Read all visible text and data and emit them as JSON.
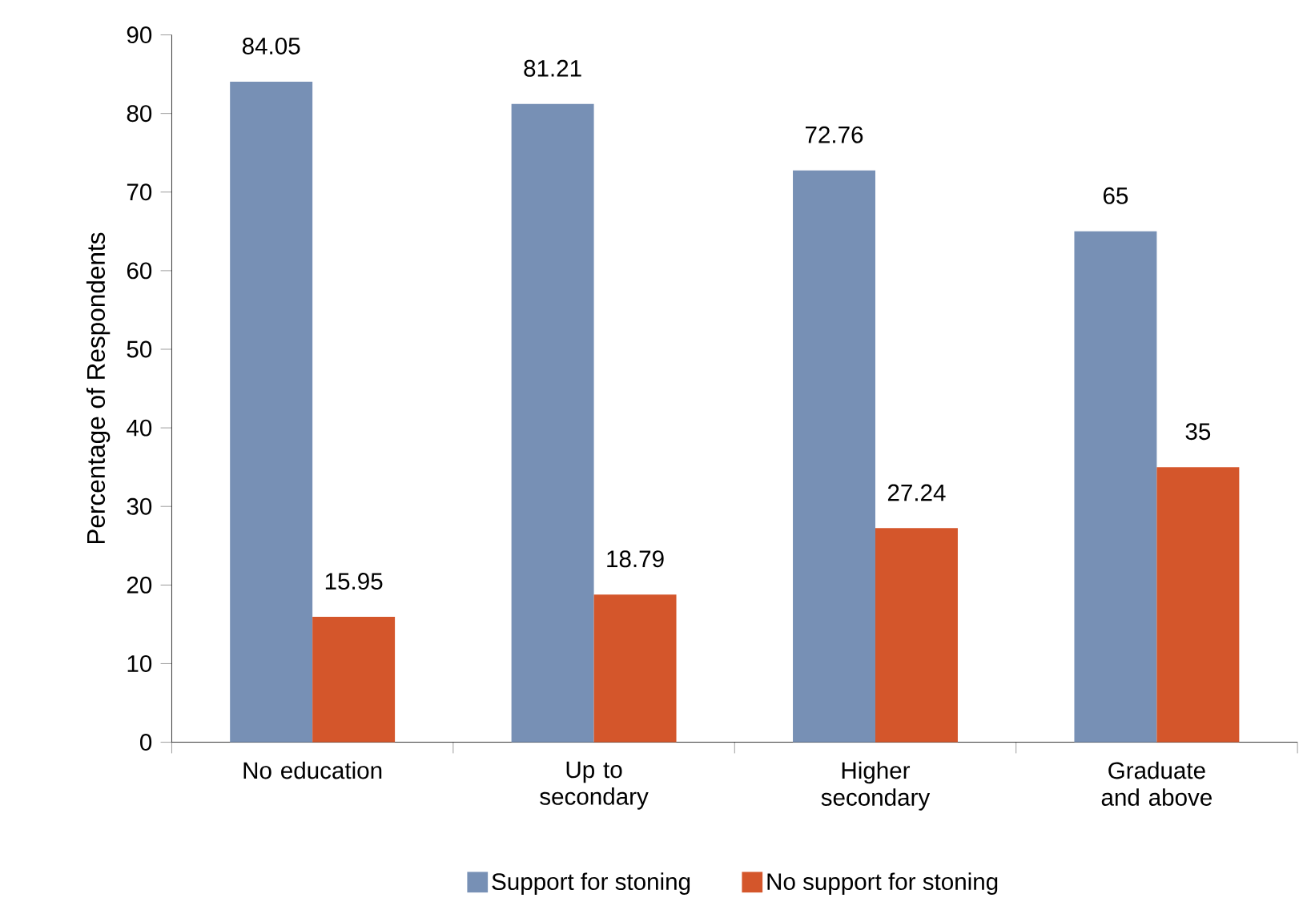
{
  "chart_data": {
    "type": "bar",
    "ylabel": "Percentage of Respondents",
    "categories": [
      "No education",
      "Up to secondary",
      "Higher secondary",
      "Graduate and above"
    ],
    "series": [
      {
        "name": "Support for stoning",
        "color": "#7790b5",
        "values": [
          84.05,
          81.21,
          72.76,
          65
        ]
      },
      {
        "name": "No support for stoning",
        "color": "#d4562b",
        "values": [
          15.95,
          18.79,
          27.24,
          35
        ]
      }
    ],
    "ylim": [
      0,
      90
    ],
    "yticks": [
      0,
      10,
      20,
      30,
      40,
      50,
      60,
      70,
      80,
      90
    ],
    "data_labels": true,
    "grid": false,
    "legend": "bottom"
  }
}
